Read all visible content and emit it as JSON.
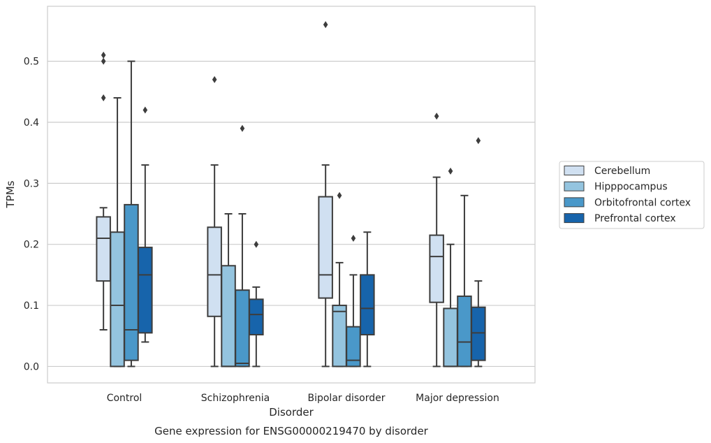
{
  "chart_data": {
    "type": "box",
    "title": "",
    "caption": "Gene expression for ENSG00000219470 by disorder",
    "xlabel": "Disorder",
    "ylabel": "TPMs",
    "ylim": [
      -0.027,
      0.59
    ],
    "yticks": [
      0.0,
      0.1,
      0.2,
      0.3,
      0.4,
      0.5
    ],
    "ytick_labels": [
      "0.0",
      "0.1",
      "0.2",
      "0.3",
      "0.4",
      "0.5"
    ],
    "grid": "horizontal",
    "legend_position": "right",
    "categories": [
      "Control",
      "Schizophrenia",
      "Bipolar disorder",
      "Major depression"
    ],
    "series": [
      {
        "name": "Cerebellum",
        "color": "#d0e0f1",
        "boxes": [
          {
            "whisker_low": 0.06,
            "q1": 0.14,
            "median": 0.21,
            "q3": 0.245,
            "whisker_high": 0.26,
            "outliers": [
              0.44,
              0.5,
              0.51
            ]
          },
          {
            "whisker_low": 0.0,
            "q1": 0.082,
            "median": 0.15,
            "q3": 0.228,
            "whisker_high": 0.33,
            "outliers": [
              0.47
            ]
          },
          {
            "whisker_low": 0.0,
            "q1": 0.112,
            "median": 0.15,
            "q3": 0.278,
            "whisker_high": 0.33,
            "outliers": [
              0.56
            ]
          },
          {
            "whisker_low": 0.0,
            "q1": 0.105,
            "median": 0.18,
            "q3": 0.215,
            "whisker_high": 0.31,
            "outliers": [
              0.41
            ]
          }
        ]
      },
      {
        "name": "Hipppocampus",
        "color": "#94c4df",
        "boxes": [
          {
            "whisker_low": 0.0,
            "q1": 0.0,
            "median": 0.1,
            "q3": 0.22,
            "whisker_high": 0.44,
            "outliers": []
          },
          {
            "whisker_low": 0.0,
            "q1": 0.0,
            "median": 0.0,
            "q3": 0.165,
            "whisker_high": 0.25,
            "outliers": []
          },
          {
            "whisker_low": 0.0,
            "q1": 0.0,
            "median": 0.09,
            "q3": 0.1,
            "whisker_high": 0.17,
            "outliers": [
              0.28
            ]
          },
          {
            "whisker_low": 0.0,
            "q1": 0.0,
            "median": 0.0,
            "q3": 0.095,
            "whisker_high": 0.2,
            "outliers": [
              0.32
            ]
          }
        ]
      },
      {
        "name": "Orbitofrontal cortex",
        "color": "#4a98c9",
        "boxes": [
          {
            "whisker_low": 0.0,
            "q1": 0.01,
            "median": 0.06,
            "q3": 0.265,
            "whisker_high": 0.5,
            "outliers": []
          },
          {
            "whisker_low": 0.0,
            "q1": 0.0,
            "median": 0.005,
            "q3": 0.125,
            "whisker_high": 0.25,
            "outliers": [
              0.39
            ]
          },
          {
            "whisker_low": 0.0,
            "q1": 0.0,
            "median": 0.01,
            "q3": 0.065,
            "whisker_high": 0.15,
            "outliers": [
              0.21
            ]
          },
          {
            "whisker_low": 0.0,
            "q1": 0.0,
            "median": 0.04,
            "q3": 0.115,
            "whisker_high": 0.28,
            "outliers": []
          }
        ]
      },
      {
        "name": "Prefrontal cortex",
        "color": "#1764ab",
        "boxes": [
          {
            "whisker_low": 0.04,
            "q1": 0.055,
            "median": 0.15,
            "q3": 0.195,
            "whisker_high": 0.33,
            "outliers": [
              0.42
            ]
          },
          {
            "whisker_low": 0.0,
            "q1": 0.052,
            "median": 0.085,
            "q3": 0.11,
            "whisker_high": 0.13,
            "outliers": [
              0.2
            ]
          },
          {
            "whisker_low": 0.0,
            "q1": 0.052,
            "median": 0.095,
            "q3": 0.15,
            "whisker_high": 0.22,
            "outliers": []
          },
          {
            "whisker_low": 0.0,
            "q1": 0.01,
            "median": 0.055,
            "q3": 0.097,
            "whisker_high": 0.14,
            "outliers": [
              0.37
            ]
          }
        ]
      }
    ],
    "style": {
      "grid_color": "#cccccc",
      "frame_color": "#cccccc",
      "line_color": "#3d3d3d",
      "text_color": "#262626"
    }
  }
}
